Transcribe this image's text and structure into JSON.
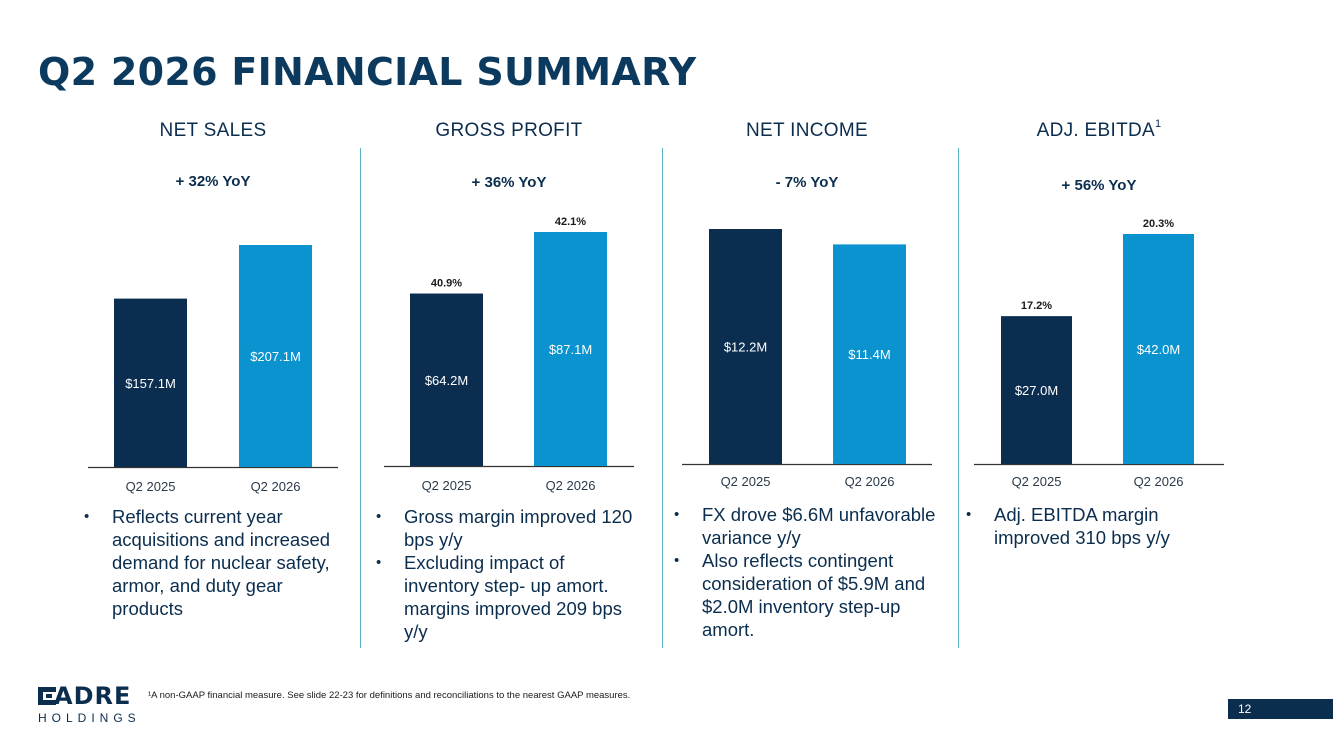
{
  "slide": {
    "title": "Q2 2026 FINANCIAL SUMMARY",
    "footnote": "¹A non-GAAP financial measure. See slide 22-23 for definitions and reconciliations to the nearest GAAP measures.",
    "page_number": "12",
    "logo": {
      "word": "ADRE",
      "subtitle": "HOLDINGS"
    }
  },
  "colors": {
    "prior_year": "#0b2d50",
    "current_year": "#0a93cf",
    "title": "#0b3a5e",
    "divider": "#5fb3c9"
  },
  "panels": [
    {
      "title": "NET SALES",
      "superscript": "",
      "yoy": "+ 32% YoY",
      "bullets": [
        "Reflects current year acquisitions and increased demand for nuclear safety, armor, and duty gear products"
      ]
    },
    {
      "title": "GROSS PROFIT",
      "superscript": "",
      "yoy": "+ 36% YoY",
      "bullets": [
        "Gross margin improved 120 bps y/y",
        "Excluding impact of inventory step- up amort. margins improved 209 bps y/y"
      ]
    },
    {
      "title": "NET INCOME",
      "superscript": "",
      "yoy": "- 7% YoY",
      "bullets": [
        "FX drove $6.6M unfavorable variance y/y",
        "Also reflects contingent consideration of $5.9M and $2.0M inventory step-up amort."
      ]
    },
    {
      "title": "ADJ. EBITDA",
      "superscript": "1",
      "yoy": "+ 56% YoY",
      "bullets": [
        "Adj. EBITDA margin improved 310 bps y/y"
      ]
    }
  ],
  "chart_data": [
    {
      "type": "bar",
      "title": "NET SALES",
      "categories": [
        "Q2 2025",
        "Q2 2026"
      ],
      "values": [
        157.1,
        207.1
      ],
      "value_labels": [
        "$157.1M",
        "$207.1M"
      ],
      "top_labels": [
        "",
        ""
      ],
      "colors": [
        "#0b2d50",
        "#0a93cf"
      ]
    },
    {
      "type": "bar",
      "title": "GROSS PROFIT",
      "categories": [
        "Q2 2025",
        "Q2 2026"
      ],
      "values": [
        64.2,
        87.1
      ],
      "value_labels": [
        "$64.2M",
        "$87.1M"
      ],
      "top_labels": [
        "40.9%",
        "42.1%"
      ],
      "colors": [
        "#0b2d50",
        "#0a93cf"
      ]
    },
    {
      "type": "bar",
      "title": "NET INCOME",
      "categories": [
        "Q2 2025",
        "Q2 2026"
      ],
      "values": [
        12.2,
        11.4
      ],
      "value_labels": [
        "$12.2M",
        "$11.4M"
      ],
      "top_labels": [
        "",
        ""
      ],
      "colors": [
        "#0b2d50",
        "#0a93cf"
      ]
    },
    {
      "type": "bar",
      "title": "ADJ. EBITDA",
      "categories": [
        "Q2 2025",
        "Q2 2026"
      ],
      "values": [
        27.0,
        42.0
      ],
      "value_labels": [
        "$27.0M",
        "$42.0M"
      ],
      "top_labels": [
        "17.2%",
        "20.3%"
      ],
      "colors": [
        "#0b2d50",
        "#0a93cf"
      ]
    }
  ]
}
